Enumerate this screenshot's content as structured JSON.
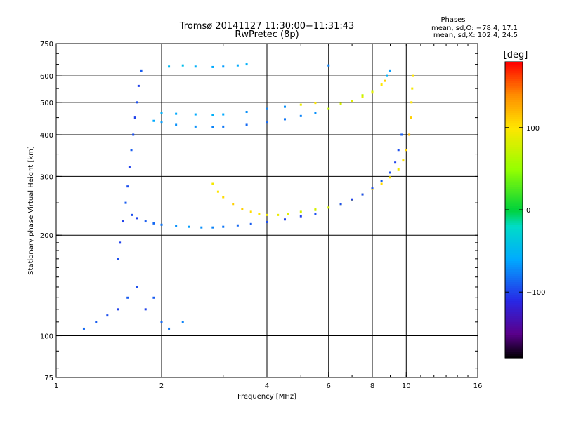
{
  "chart_data": {
    "type": "scatter",
    "title": "Tromsø 20141127 11:30:00−11:31:43",
    "subtitle": "RwPretec (8p)",
    "stats": {
      "heading": "Phases",
      "line_o": "mean, sd,O: −78.4, 17.1",
      "line_x": "mean, sd,X: 102.4, 24.5"
    },
    "xlabel": "Frequency [MHz]",
    "ylabel": "Stationary phase Virtual Height [km]",
    "x_scale": "log",
    "y_scale": "log",
    "xlim": [
      1,
      16
    ],
    "ylim": [
      75,
      750
    ],
    "x_ticks": [
      1,
      2,
      4,
      6,
      8,
      10,
      16
    ],
    "x_tick_labels": [
      "1",
      "2",
      "4",
      "6",
      "8",
      "10",
      "16"
    ],
    "y_ticks": [
      75,
      100,
      200,
      300,
      400,
      500,
      600,
      750
    ],
    "y_tick_labels": [
      "75",
      "100",
      "200",
      "300",
      "400",
      "500",
      "600",
      "750"
    ],
    "grid_x": [
      2,
      4,
      6,
      8,
      10
    ],
    "grid_y": [
      100,
      200,
      300,
      400,
      500,
      600
    ],
    "grid": true,
    "colorbar": {
      "label": "[deg]",
      "range": [
        -180,
        180
      ],
      "ticks": [
        -100,
        0,
        100
      ],
      "tick_labels": [
        "−100",
        "0",
        "100"
      ],
      "colormap": "rainbow"
    },
    "series": [
      {
        "description": "F1/F2 trace, low-frequency arm",
        "points": [
          [
            1.65,
            230,
            -95
          ],
          [
            1.7,
            225,
            -100
          ],
          [
            1.8,
            220,
            -90
          ],
          [
            1.9,
            217,
            -85
          ],
          [
            2.0,
            215,
            -80
          ],
          [
            2.2,
            213,
            -70
          ],
          [
            2.4,
            212,
            -65
          ],
          [
            2.6,
            211,
            -70
          ],
          [
            2.8,
            211,
            -75
          ],
          [
            3.0,
            212,
            -80
          ],
          [
            3.3,
            214,
            -85
          ],
          [
            3.6,
            216,
            -90
          ],
          [
            4.0,
            219,
            -95
          ],
          [
            4.5,
            223,
            -100
          ],
          [
            5.0,
            228,
            -100
          ],
          [
            5.5,
            232,
            -95
          ]
        ]
      },
      {
        "description": "X-mode trace, 2.8–5.5 MHz",
        "points": [
          [
            2.8,
            285,
            95
          ],
          [
            2.9,
            270,
            100
          ],
          [
            3.0,
            260,
            105
          ],
          [
            3.2,
            248,
            110
          ],
          [
            3.4,
            240,
            110
          ],
          [
            3.6,
            235,
            105
          ],
          [
            3.8,
            232,
            100
          ],
          [
            4.0,
            230,
            95
          ],
          [
            4.3,
            230,
            90
          ],
          [
            4.6,
            232,
            85
          ],
          [
            5.0,
            235,
            80
          ],
          [
            5.5,
            240,
            85
          ]
        ]
      },
      {
        "description": "Rising trace towards the cusp near 10 MHz",
        "points": [
          [
            5.5,
            238,
            75
          ],
          [
            6.0,
            242,
            80
          ],
          [
            6.5,
            248,
            90
          ],
          [
            7.0,
            255,
            95
          ],
          [
            7.5,
            265,
            100
          ],
          [
            8.0,
            275,
            105
          ],
          [
            8.5,
            285,
            105
          ],
          [
            9.0,
            298,
            100
          ],
          [
            9.5,
            315,
            95
          ],
          [
            9.8,
            335,
            100
          ],
          [
            10.0,
            360,
            110
          ],
          [
            10.2,
            400,
            120
          ],
          [
            10.3,
            450,
            110
          ],
          [
            10.35,
            500,
            100
          ],
          [
            10.4,
            550,
            95
          ],
          [
            10.45,
            600,
            100
          ]
        ]
      },
      {
        "description": "O-mode branch ending near 9.5 MHz",
        "points": [
          [
            6.5,
            248,
            -95
          ],
          [
            7.0,
            256,
            -100
          ],
          [
            7.5,
            265,
            -95
          ],
          [
            8.0,
            276,
            -95
          ],
          [
            8.5,
            290,
            -90
          ],
          [
            9.0,
            308,
            -95
          ],
          [
            9.3,
            330,
            -100
          ],
          [
            9.5,
            360,
            -95
          ],
          [
            9.7,
            400,
            -90
          ]
        ]
      },
      {
        "description": "Upper trace near 430–500 km",
        "points": [
          [
            1.9,
            440,
            -60
          ],
          [
            2.0,
            435,
            -65
          ],
          [
            2.2,
            428,
            -70
          ],
          [
            2.5,
            423,
            -70
          ],
          [
            2.8,
            422,
            -75
          ],
          [
            3.0,
            423,
            -80
          ],
          [
            3.5,
            428,
            -85
          ],
          [
            4.0,
            435,
            -85
          ],
          [
            4.5,
            445,
            -80
          ],
          [
            5.0,
            455,
            -75
          ],
          [
            5.5,
            465,
            -70
          ],
          [
            6.0,
            478,
            70
          ],
          [
            6.5,
            495,
            80
          ],
          [
            7.0,
            505,
            85
          ],
          [
            7.5,
            520,
            90
          ],
          [
            8.0,
            535,
            95
          ]
        ]
      },
      {
        "description": "Upper trace around 460–480 km",
        "points": [
          [
            2.0,
            465,
            -55
          ],
          [
            2.2,
            462,
            -60
          ],
          [
            2.5,
            460,
            -60
          ],
          [
            2.8,
            458,
            -55
          ],
          [
            3.0,
            460,
            -60
          ],
          [
            3.5,
            468,
            -70
          ],
          [
            4.0,
            478,
            -75
          ],
          [
            4.5,
            485,
            -70
          ],
          [
            5.0,
            492,
            90
          ],
          [
            5.5,
            498,
            100
          ]
        ]
      },
      {
        "description": "Upper trace segments 7.5–9 MHz",
        "points": [
          [
            7.5,
            525,
            70
          ],
          [
            8.0,
            540,
            80
          ],
          [
            8.5,
            565,
            100
          ],
          [
            8.7,
            580,
            110
          ],
          [
            8.8,
            600,
            -55
          ],
          [
            9.0,
            620,
            -65
          ]
        ]
      },
      {
        "description": "Top near 640 km",
        "points": [
          [
            2.1,
            640,
            -50
          ],
          [
            2.3,
            645,
            -45
          ],
          [
            2.5,
            640,
            -55
          ],
          [
            2.8,
            638,
            -60
          ],
          [
            3.0,
            640,
            -65
          ],
          [
            3.3,
            645,
            -60
          ],
          [
            3.5,
            650,
            -55
          ],
          [
            6.0,
            645,
            -75
          ]
        ]
      },
      {
        "description": "Spread-F column near 1.5–1.8 MHz",
        "points": [
          [
            1.5,
            170,
            -95
          ],
          [
            1.52,
            190,
            -100
          ],
          [
            1.55,
            220,
            -100
          ],
          [
            1.58,
            250,
            -90
          ],
          [
            1.6,
            280,
            -95
          ],
          [
            1.62,
            320,
            -100
          ],
          [
            1.64,
            360,
            -90
          ],
          [
            1.66,
            400,
            -95
          ],
          [
            1.68,
            450,
            -100
          ],
          [
            1.7,
            500,
            -95
          ],
          [
            1.72,
            560,
            -100
          ],
          [
            1.75,
            620,
            -90
          ]
        ]
      },
      {
        "description": "Low-altitude echoes 1.2–2.4 MHz",
        "points": [
          [
            1.2,
            105,
            -85
          ],
          [
            1.3,
            110,
            -90
          ],
          [
            1.4,
            115,
            -95
          ],
          [
            1.5,
            120,
            -100
          ],
          [
            1.6,
            130,
            -90
          ],
          [
            1.7,
            140,
            -95
          ],
          [
            1.8,
            120,
            -100
          ],
          [
            1.9,
            130,
            -90
          ],
          [
            2.0,
            110,
            -85
          ],
          [
            2.1,
            105,
            -80
          ],
          [
            2.3,
            110,
            -75
          ]
        ]
      }
    ]
  }
}
